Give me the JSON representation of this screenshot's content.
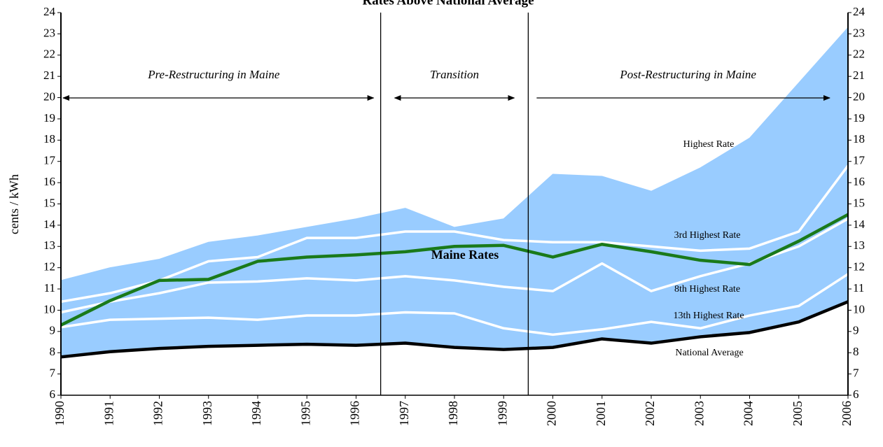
{
  "chart_data": {
    "type": "line",
    "title": "Rates Above National Average",
    "y_label": "cents / kWh",
    "x": [
      1990,
      1991,
      1992,
      1993,
      1994,
      1995,
      1996,
      1997,
      1998,
      1999,
      2000,
      2001,
      2002,
      2003,
      2004,
      2005,
      2006
    ],
    "xlim": [
      1990,
      2006
    ],
    "xticks": [
      1990,
      1991,
      1992,
      1993,
      1994,
      1995,
      1996,
      1997,
      1998,
      1999,
      2000,
      2001,
      2002,
      2003,
      2004,
      2005,
      2006
    ],
    "ylim": [
      6,
      24
    ],
    "yticks": [
      6,
      7,
      8,
      9,
      10,
      11,
      12,
      13,
      14,
      15,
      16,
      17,
      18,
      19,
      20,
      21,
      22,
      23,
      24
    ],
    "grid": false,
    "series": [
      {
        "name": "Highest Rate",
        "color": "#99ccff",
        "fill": "area",
        "values": [
          11.4,
          12.0,
          12.4,
          13.2,
          13.5,
          13.9,
          14.3,
          14.8,
          13.9,
          14.3,
          16.4,
          16.3,
          15.6,
          16.7,
          18.1,
          20.7,
          23.3
        ]
      },
      {
        "name": "3rd Highest Rate",
        "color": "#ffffff",
        "values": [
          10.4,
          10.8,
          11.4,
          12.3,
          12.5,
          13.4,
          13.4,
          13.7,
          13.7,
          13.3,
          13.2,
          13.2,
          13.0,
          12.8,
          12.9,
          13.7,
          16.8
        ]
      },
      {
        "name": "8th Highest Rate",
        "color": "#ffffff",
        "values": [
          9.9,
          10.4,
          10.8,
          11.3,
          11.35,
          11.5,
          11.4,
          11.6,
          11.4,
          11.1,
          10.9,
          12.2,
          10.9,
          11.6,
          12.2,
          13.0,
          14.3
        ]
      },
      {
        "name": "13th Highest Rate",
        "color": "#ffffff",
        "values": [
          9.2,
          9.55,
          9.6,
          9.65,
          9.55,
          9.75,
          9.75,
          9.9,
          9.85,
          9.15,
          8.85,
          9.1,
          9.45,
          9.15,
          9.75,
          10.2,
          11.7
        ]
      },
      {
        "name": "Maine Rates",
        "color": "#1a7a1a",
        "values": [
          9.3,
          10.45,
          11.4,
          11.45,
          12.3,
          12.5,
          12.6,
          12.75,
          13.0,
          13.05,
          12.5,
          13.1,
          12.75,
          12.35,
          12.15,
          13.25,
          14.5
        ]
      },
      {
        "name": "National Average",
        "color": "#000000",
        "values": [
          7.8,
          8.05,
          8.2,
          8.3,
          8.35,
          8.4,
          8.35,
          8.45,
          8.25,
          8.15,
          8.25,
          8.65,
          8.45,
          8.75,
          8.95,
          9.45,
          10.4
        ]
      }
    ],
    "dividers": [
      1996.5,
      1999.5
    ],
    "periods": [
      "Pre-Restructuring in Maine",
      "Transition",
      "Post-Restructuring in Maine"
    ]
  }
}
